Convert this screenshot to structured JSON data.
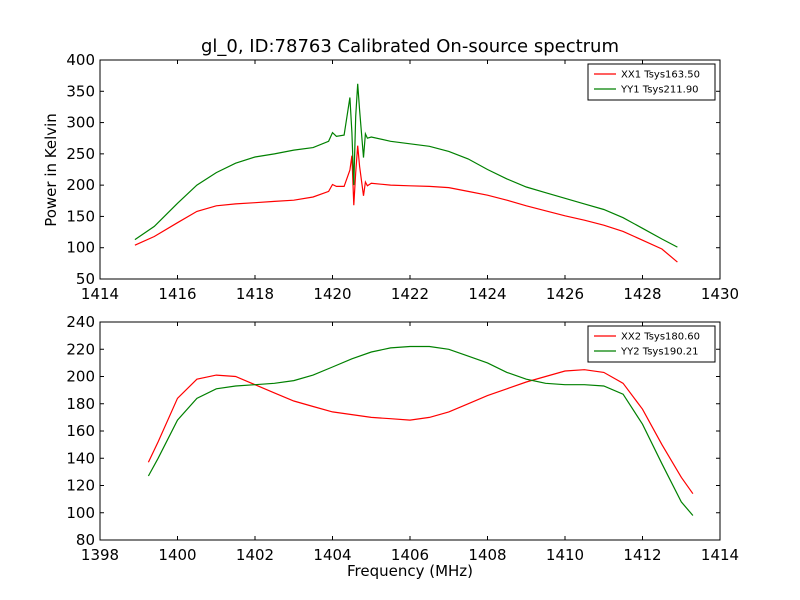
{
  "chart_data": [
    {
      "type": "line",
      "title": "gl_0, ID:78763 Calibrated On-source spectrum",
      "xlabel": "",
      "ylabel": "Power in Kelvin",
      "xlim": [
        1414,
        1430
      ],
      "ylim": [
        50,
        400
      ],
      "xticks": [
        1414,
        1416,
        1418,
        1420,
        1422,
        1424,
        1426,
        1428,
        1430
      ],
      "yticks": [
        50,
        100,
        150,
        200,
        250,
        300,
        350,
        400
      ],
      "legend_position": "top-right",
      "series": [
        {
          "name": "XX1 Tsys163.50",
          "color": "#ff0000",
          "points": [
            [
              1414.9,
              104
            ],
            [
              1415.4,
              118
            ],
            [
              1416.0,
              140
            ],
            [
              1416.5,
              158
            ],
            [
              1417.0,
              167
            ],
            [
              1417.5,
              170
            ],
            [
              1418.0,
              172
            ],
            [
              1418.5,
              174
            ],
            [
              1419.0,
              176
            ],
            [
              1419.5,
              181
            ],
            [
              1419.9,
              190
            ],
            [
              1420.0,
              201
            ],
            [
              1420.1,
              198
            ],
            [
              1420.3,
              198
            ],
            [
              1420.45,
              224
            ],
            [
              1420.5,
              247
            ],
            [
              1420.55,
              168
            ],
            [
              1420.6,
              220
            ],
            [
              1420.65,
              263
            ],
            [
              1420.7,
              230
            ],
            [
              1420.8,
              183
            ],
            [
              1420.85,
              205
            ],
            [
              1420.9,
              199
            ],
            [
              1421.0,
              203
            ],
            [
              1421.5,
              200
            ],
            [
              1422.0,
              199
            ],
            [
              1422.5,
              198
            ],
            [
              1423.0,
              196
            ],
            [
              1423.5,
              190
            ],
            [
              1424.0,
              184
            ],
            [
              1424.5,
              176
            ],
            [
              1425.0,
              167
            ],
            [
              1425.5,
              159
            ],
            [
              1426.0,
              151
            ],
            [
              1426.5,
              144
            ],
            [
              1427.0,
              136
            ],
            [
              1427.5,
              126
            ],
            [
              1428.0,
              112
            ],
            [
              1428.5,
              98
            ],
            [
              1428.9,
              77
            ]
          ]
        },
        {
          "name": "YY1 Tsys211.90",
          "color": "#008000",
          "points": [
            [
              1414.9,
              113
            ],
            [
              1415.4,
              134
            ],
            [
              1416.0,
              171
            ],
            [
              1416.5,
              200
            ],
            [
              1417.0,
              220
            ],
            [
              1417.5,
              235
            ],
            [
              1418.0,
              245
            ],
            [
              1418.5,
              250
            ],
            [
              1419.0,
              256
            ],
            [
              1419.5,
              260
            ],
            [
              1419.9,
              270
            ],
            [
              1420.0,
              284
            ],
            [
              1420.1,
              278
            ],
            [
              1420.3,
              280
            ],
            [
              1420.45,
              340
            ],
            [
              1420.5,
              284
            ],
            [
              1420.55,
              200
            ],
            [
              1420.6,
              310
            ],
            [
              1420.65,
              362
            ],
            [
              1420.7,
              320
            ],
            [
              1420.8,
              244
            ],
            [
              1420.85,
              282
            ],
            [
              1420.9,
              275
            ],
            [
              1421.0,
              277
            ],
            [
              1421.5,
              270
            ],
            [
              1422.0,
              266
            ],
            [
              1422.5,
              262
            ],
            [
              1423.0,
              254
            ],
            [
              1423.5,
              242
            ],
            [
              1424.0,
              225
            ],
            [
              1424.5,
              210
            ],
            [
              1425.0,
              197
            ],
            [
              1425.5,
              188
            ],
            [
              1426.0,
              179
            ],
            [
              1426.5,
              170
            ],
            [
              1427.0,
              161
            ],
            [
              1427.5,
              148
            ],
            [
              1428.0,
              131
            ],
            [
              1428.5,
              114
            ],
            [
              1428.9,
              101
            ]
          ]
        }
      ]
    },
    {
      "type": "line",
      "title": "",
      "xlabel": "Frequency (MHz)",
      "ylabel": "",
      "xlim": [
        1398,
        1414
      ],
      "ylim": [
        80,
        240
      ],
      "xticks": [
        1398,
        1400,
        1402,
        1404,
        1406,
        1408,
        1410,
        1412,
        1414
      ],
      "yticks": [
        80,
        100,
        120,
        140,
        160,
        180,
        200,
        220,
        240
      ],
      "legend_position": "top-right",
      "series": [
        {
          "name": "XX2 Tsys180.60",
          "color": "#ff0000",
          "points": [
            [
              1399.25,
              137
            ],
            [
              1399.5,
              152
            ],
            [
              1400.0,
              184
            ],
            [
              1400.5,
              198
            ],
            [
              1401.0,
              201
            ],
            [
              1401.5,
              200
            ],
            [
              1402.0,
              194
            ],
            [
              1402.5,
              188
            ],
            [
              1403.0,
              182
            ],
            [
              1403.5,
              178
            ],
            [
              1404.0,
              174
            ],
            [
              1404.5,
              172
            ],
            [
              1405.0,
              170
            ],
            [
              1405.5,
              169
            ],
            [
              1406.0,
              168
            ],
            [
              1406.5,
              170
            ],
            [
              1407.0,
              174
            ],
            [
              1407.5,
              180
            ],
            [
              1408.0,
              186
            ],
            [
              1408.5,
              191
            ],
            [
              1409.0,
              196
            ],
            [
              1409.5,
              200
            ],
            [
              1410.0,
              204
            ],
            [
              1410.5,
              205
            ],
            [
              1411.0,
              203
            ],
            [
              1411.5,
              195
            ],
            [
              1412.0,
              176
            ],
            [
              1412.5,
              150
            ],
            [
              1413.0,
              126
            ],
            [
              1413.3,
              114
            ]
          ]
        },
        {
          "name": "YY2 Tsys190.21",
          "color": "#008000",
          "points": [
            [
              1399.25,
              127
            ],
            [
              1399.5,
              140
            ],
            [
              1400.0,
              168
            ],
            [
              1400.5,
              184
            ],
            [
              1401.0,
              191
            ],
            [
              1401.5,
              193
            ],
            [
              1402.0,
              194
            ],
            [
              1402.5,
              195
            ],
            [
              1403.0,
              197
            ],
            [
              1403.5,
              201
            ],
            [
              1404.0,
              207
            ],
            [
              1404.5,
              213
            ],
            [
              1405.0,
              218
            ],
            [
              1405.5,
              221
            ],
            [
              1406.0,
              222
            ],
            [
              1406.5,
              222
            ],
            [
              1407.0,
              220
            ],
            [
              1407.5,
              215
            ],
            [
              1408.0,
              210
            ],
            [
              1408.5,
              203
            ],
            [
              1409.0,
              198
            ],
            [
              1409.5,
              195
            ],
            [
              1410.0,
              194
            ],
            [
              1410.5,
              194
            ],
            [
              1411.0,
              193
            ],
            [
              1411.5,
              187
            ],
            [
              1412.0,
              165
            ],
            [
              1412.5,
              136
            ],
            [
              1413.0,
              108
            ],
            [
              1413.3,
              98
            ]
          ]
        }
      ]
    }
  ]
}
